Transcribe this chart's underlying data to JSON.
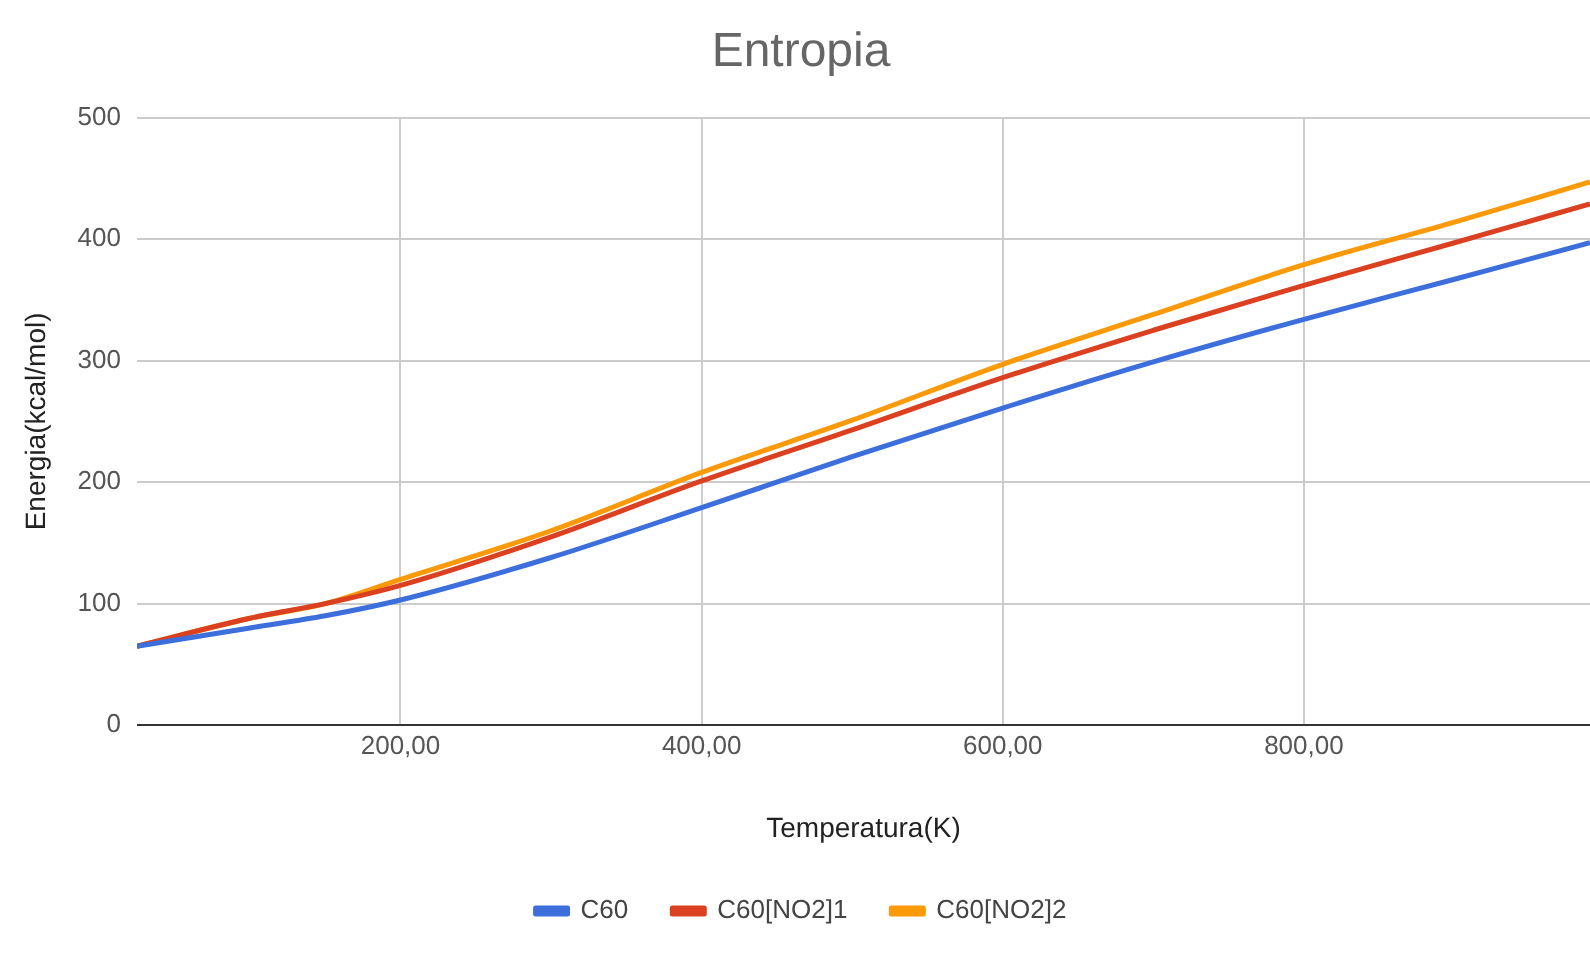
{
  "chart_data": {
    "type": "line",
    "title": "Entropia",
    "xlabel": "Temperatura(K)",
    "ylabel": "Energia(kcal/mol)",
    "xlim": [
      25,
      990
    ],
    "xticks": [
      {
        "value": 200,
        "label": "200,00"
      },
      {
        "value": 400,
        "label": "400,00"
      },
      {
        "value": 600,
        "label": "600,00"
      },
      {
        "value": 800,
        "label": "800,00"
      }
    ],
    "ylim": [
      0,
      500
    ],
    "yticks": [
      0,
      100,
      200,
      300,
      400,
      500
    ],
    "x": [
      25,
      100,
      150,
      200,
      300,
      400,
      500,
      600,
      700,
      800,
      900,
      990
    ],
    "series": [
      {
        "name": "C60",
        "color": "#3c6fdb",
        "values": [
          65,
          80,
          90,
          103,
          138,
          179,
          221,
          261,
          299,
          334,
          367,
          397
        ]
      },
      {
        "name": "C60[NO2]1",
        "color": "#db4020",
        "values": [
          65,
          88,
          100,
          115,
          155,
          201,
          243,
          286,
          325,
          362,
          397,
          429
        ]
      },
      {
        "name": "C60[NO2]2",
        "color": "#fb9a09",
        "values": [
          65,
          88,
          100,
          120,
          160,
          208,
          251,
          297,
          338,
          379,
          414,
          447
        ]
      }
    ],
    "grid": true,
    "legend": "bottom",
    "marker": "none",
    "line_style": "solid"
  }
}
